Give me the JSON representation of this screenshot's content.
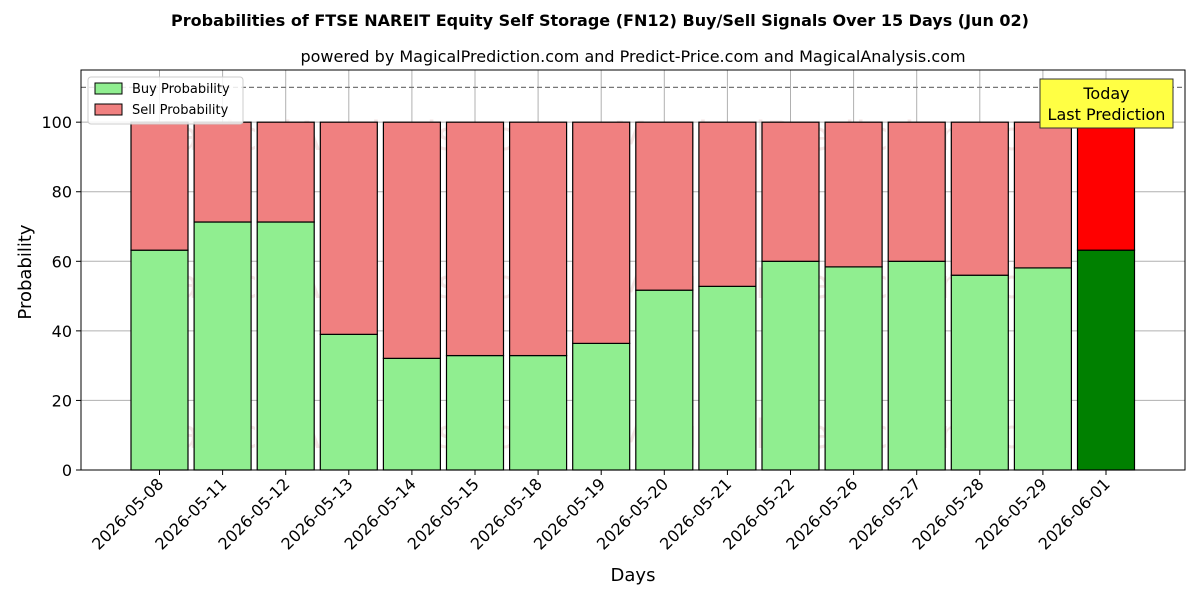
{
  "chart_data": {
    "type": "bar",
    "stacked": true,
    "title": "Probabilities of FTSE NAREIT Equity Self Storage (FN12) Buy/Sell Signals Over 15 Days (Jun 02)",
    "subtitle": "powered by MagicalPrediction.com and Predict-Price.com and MagicalAnalysis.com",
    "xlabel": "Days",
    "ylabel": "Probability",
    "ylim": [
      0,
      115
    ],
    "yticks": [
      0,
      20,
      40,
      60,
      80,
      100
    ],
    "grid": true,
    "legend_position": "top-left",
    "reference_line": 110,
    "categories": [
      "2026-05-08",
      "2026-05-11",
      "2026-05-12",
      "2026-05-13",
      "2026-05-14",
      "2026-05-15",
      "2026-05-18",
      "2026-05-19",
      "2026-05-20",
      "2026-05-21",
      "2026-05-22",
      "2026-05-26",
      "2026-05-27",
      "2026-05-28",
      "2026-05-29",
      "2026-06-01"
    ],
    "series": [
      {
        "name": "Buy Probability",
        "color": "#90ee90",
        "highlight_color": "#008000",
        "values": [
          63.2,
          71.3,
          71.3,
          39.0,
          32.1,
          32.9,
          32.9,
          36.4,
          51.7,
          52.8,
          60.0,
          58.4,
          60.0,
          56.0,
          58.1,
          63.2
        ]
      },
      {
        "name": "Sell Probability",
        "color": "#f08080",
        "highlight_color": "#ff0000",
        "values": [
          36.8,
          28.7,
          28.7,
          61.0,
          67.9,
          67.1,
          67.1,
          63.6,
          48.3,
          47.2,
          40.0,
          41.6,
          40.0,
          44.0,
          41.9,
          36.8
        ]
      }
    ],
    "annotation": {
      "lines": [
        "Today",
        "Last Prediction"
      ],
      "color": "#ffff44"
    },
    "watermarks": [
      "MagicalAnalysis.com",
      "MagicalPrediction.com"
    ]
  }
}
